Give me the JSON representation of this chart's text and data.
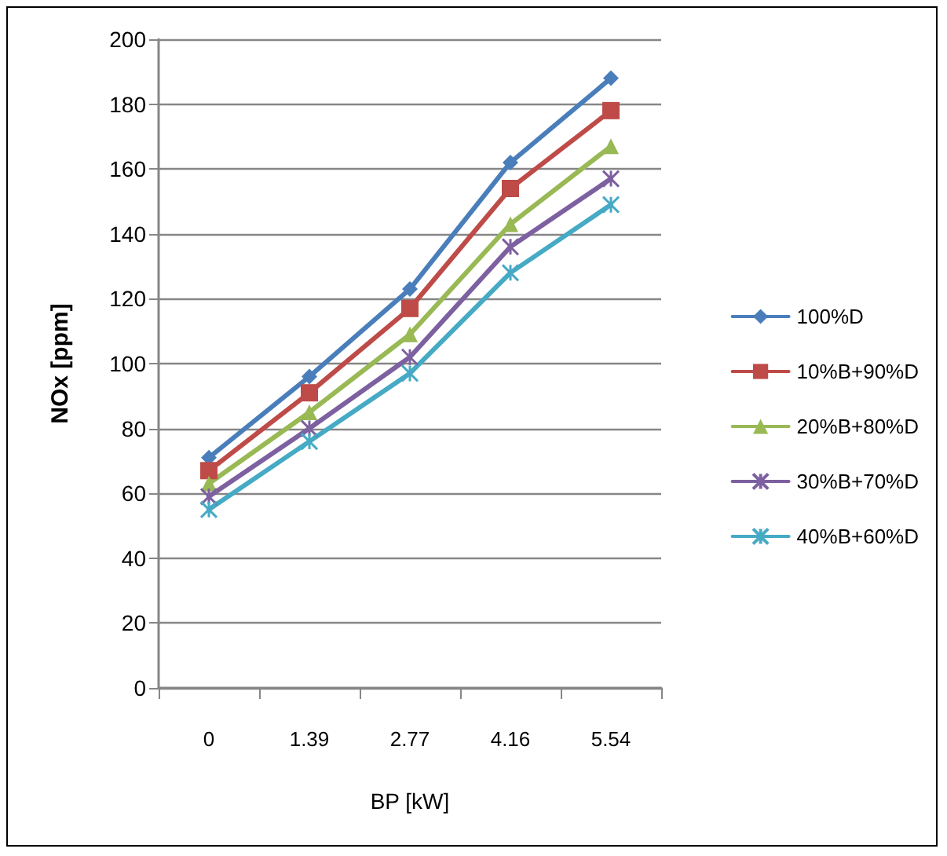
{
  "chart_data": {
    "type": "line",
    "xlabel": "BP [kW]",
    "ylabel": "NOx [ppm]",
    "categories": [
      "0",
      "1.39",
      "2.77",
      "4.16",
      "5.54"
    ],
    "series": [
      {
        "name": "100%D",
        "color": "#4a7ebb",
        "marker": "diamond",
        "values": [
          71,
          96,
          123,
          162,
          188
        ]
      },
      {
        "name": "10%B+90%D",
        "color": "#be4b48",
        "marker": "square",
        "values": [
          67,
          91,
          117,
          154,
          178
        ]
      },
      {
        "name": "20%B+80%D",
        "color": "#98b954",
        "marker": "triangle",
        "values": [
          63,
          85,
          109,
          143,
          167
        ]
      },
      {
        "name": "30%B+70%D",
        "color": "#7d60a0",
        "marker": "cross",
        "values": [
          59,
          80,
          102,
          136,
          157
        ]
      },
      {
        "name": "40%B+60%D",
        "color": "#46aac5",
        "marker": "cross",
        "values": [
          55,
          76,
          97,
          128,
          149
        ]
      }
    ],
    "ylim": [
      0,
      200
    ],
    "yticks": [
      0,
      20,
      40,
      60,
      80,
      100,
      120,
      140,
      160,
      180,
      200
    ],
    "grid": "y",
    "legend": "right"
  }
}
